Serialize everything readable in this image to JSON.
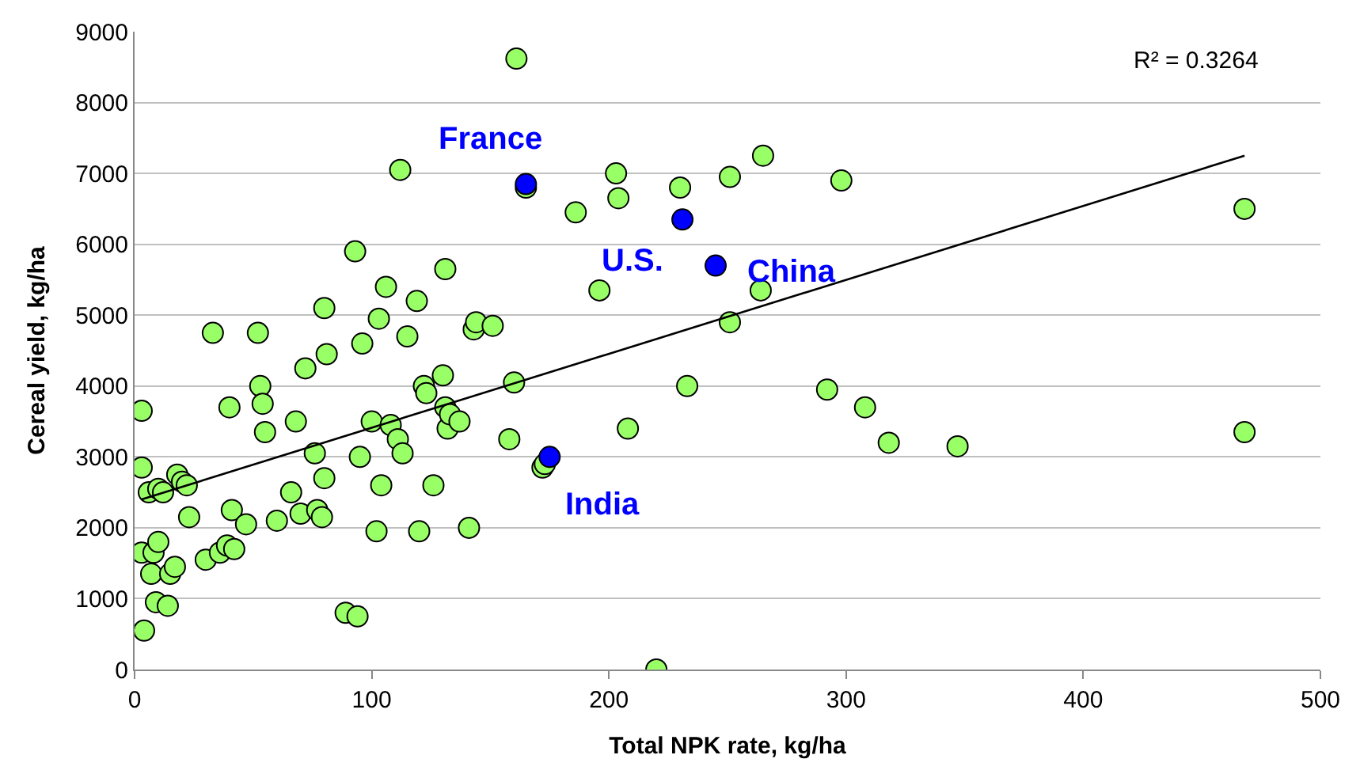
{
  "chart_data": {
    "type": "scatter",
    "xlabel": "Total NPK rate, kg/ha",
    "ylabel": "Cereal yield, kg/ha",
    "xlim": [
      0,
      500
    ],
    "xticks": [
      0,
      100,
      200,
      300,
      400,
      500
    ],
    "ylim": [
      0,
      9000
    ],
    "yticks": [
      0,
      1000,
      2000,
      3000,
      4000,
      5000,
      6000,
      7000,
      8000,
      9000
    ],
    "grid": "y",
    "marker": "circle",
    "series": [
      {
        "color": "#99ff66",
        "x": [
          3,
          3,
          3,
          4,
          6,
          7,
          8,
          9,
          10,
          10,
          12,
          14,
          15,
          17,
          18,
          20,
          22,
          23,
          30,
          33,
          36,
          39,
          40,
          41,
          42,
          47,
          52,
          53,
          54,
          55,
          60,
          66,
          68,
          70,
          72,
          76,
          77,
          79,
          80,
          80,
          81,
          89,
          93,
          94,
          95,
          96,
          100,
          102,
          103,
          104,
          106,
          108,
          111,
          112,
          113,
          115,
          119,
          120,
          122,
          123,
          126,
          130,
          131,
          131,
          132,
          133,
          137,
          141,
          143,
          144,
          151,
          158,
          160,
          161,
          165,
          172,
          173,
          186,
          196,
          203,
          204,
          208,
          220,
          230,
          233,
          251,
          251,
          264,
          265,
          292,
          298,
          308,
          318,
          347,
          468,
          468
        ],
        "values": [
          3650,
          2850,
          1650,
          550,
          2500,
          1350,
          1650,
          950,
          1800,
          2550,
          2500,
          900,
          1350,
          1450,
          2750,
          2650,
          2600,
          2150,
          1550,
          4750,
          1650,
          1750,
          3700,
          2250,
          1700,
          2050,
          4750,
          4000,
          3750,
          3350,
          2100,
          2500,
          3500,
          2200,
          4250,
          3050,
          2250,
          2150,
          2700,
          5100,
          4450,
          800,
          5900,
          750,
          3000,
          4600,
          3500,
          1950,
          4950,
          2600,
          5400,
          3450,
          3250,
          7050,
          3050,
          4700,
          5200,
          1950,
          4000,
          3900,
          2600,
          4150,
          3700,
          5650,
          3400,
          3600,
          3500,
          2000,
          4800,
          4900,
          4850,
          3250,
          4050,
          8620,
          6800,
          2850,
          2900,
          6450,
          5350,
          7000,
          6650,
          3400,
          0,
          6800,
          4000,
          6950,
          4900,
          5350,
          7250,
          3950,
          6900,
          3700,
          3200,
          3150,
          6500,
          3350
        ]
      },
      {
        "color": "#0000ff",
        "x": [
          165,
          231,
          245,
          175
        ],
        "values": [
          6850,
          6350,
          5700,
          3000
        ]
      },
      {
        "type": "line",
        "color": "#000000",
        "marker": "none",
        "x": [
          3,
          468
        ],
        "values": [
          2400,
          7250
        ]
      }
    ],
    "annotations": [
      {
        "text": "France",
        "x": 165,
        "y": 6850
      },
      {
        "text": "U.S.",
        "x": 231,
        "y": 6350
      },
      {
        "text": "China",
        "x": 245,
        "y": 5700
      },
      {
        "text": "India",
        "x": 175,
        "y": 3000
      },
      "R² = 0.3264"
    ]
  }
}
